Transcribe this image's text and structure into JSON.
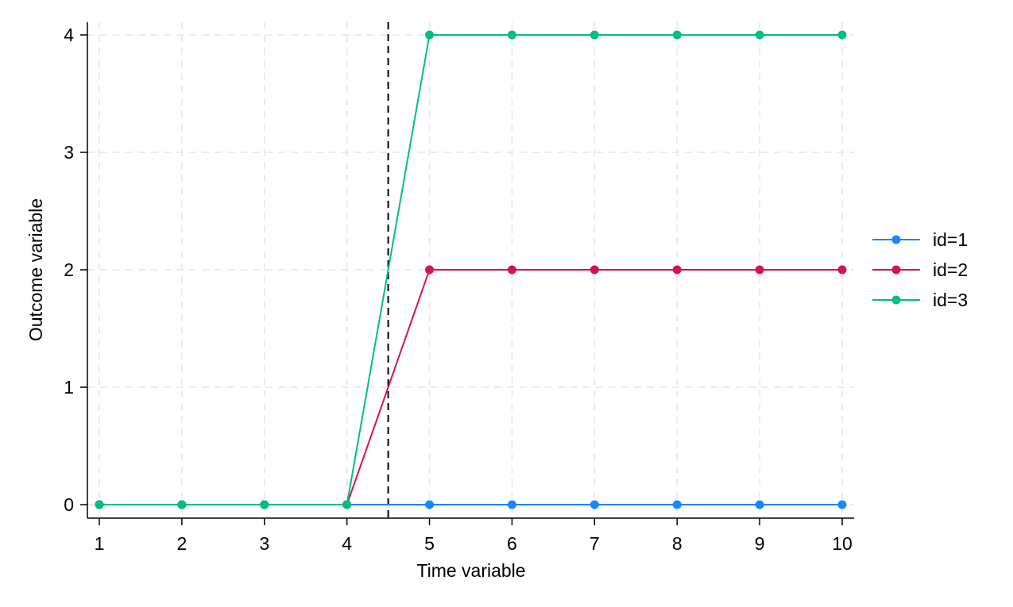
{
  "chart_data": {
    "type": "line",
    "title": "",
    "xlabel": "Time  variable",
    "ylabel": "Outcome variable",
    "x": [
      1,
      2,
      3,
      4,
      5,
      6,
      7,
      8,
      9,
      10
    ],
    "xticks": [
      1,
      2,
      3,
      4,
      5,
      6,
      7,
      8,
      9,
      10
    ],
    "yticks": [
      0,
      1,
      2,
      3,
      4
    ],
    "xlim": [
      1,
      10
    ],
    "ylim": [
      0,
      4
    ],
    "grid": true,
    "legend_position": "right",
    "reference_line": {
      "x": 4.5,
      "style": "dashed",
      "color": "#000000"
    },
    "series": [
      {
        "name": "id=1",
        "color": "#1a85ff",
        "values": [
          0,
          0,
          0,
          0,
          0,
          0,
          0,
          0,
          0,
          0
        ]
      },
      {
        "name": "id=2",
        "color": "#d41159",
        "values": [
          0,
          0,
          0,
          0,
          2,
          2,
          2,
          2,
          2,
          2
        ]
      },
      {
        "name": "id=3",
        "color": "#00bf7d",
        "values": [
          0,
          0,
          0,
          0,
          4,
          4,
          4,
          4,
          4,
          4
        ]
      }
    ]
  }
}
